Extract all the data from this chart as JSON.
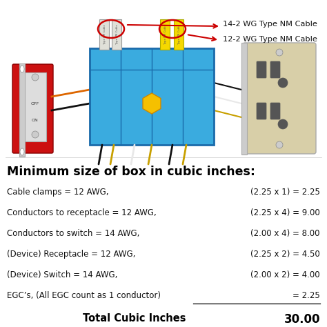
{
  "title": "Minimum size of box in cubic inches:",
  "rows": [
    {
      "label": "Cable clamps = 12 AWG,",
      "calc": "(2.25 x 1) = 2.25",
      "underline": false
    },
    {
      "label": "Conductors to receptacle = 12 AWG,",
      "calc": "(2.25 x 4) = 9.00",
      "underline": false
    },
    {
      "label": "Conductors to switch = 14 AWG,",
      "calc": "(2.00 x 4) = 8.00",
      "underline": false
    },
    {
      "label": "(Device) Receptacle = 12 AWG,",
      "calc": "(2.25 x 2) = 4.50",
      "underline": false
    },
    {
      "label": "(Device) Switch = 14 AWG,",
      "calc": "(2.00 x 2) = 4.00",
      "underline": false
    },
    {
      "label": "EGC’s, (All EGC count as 1 conductor)",
      "calc": "= 2.25",
      "underline": true
    }
  ],
  "total_label": "Total Cubic Inches",
  "total_value": "30.00",
  "cable_label1": "14-2 WG Type NM Cable",
  "cable_label2": "12-2 WG Type NM Cable",
  "bg_color": "#ffffff",
  "title_color": "#000000",
  "text_color": "#111111",
  "total_color": "#000000",
  "box_color": "#3aabdf",
  "box_edge": "#1a6aaa",
  "switch_bg": "#cc1111",
  "switch_face": "#dddddd",
  "receptacle_color": "#d8cfa8",
  "wire_white": "#e8e8e8",
  "wire_black": "#111111",
  "wire_gold": "#c8a000",
  "cable_white_fill": "#e0e0d8",
  "cable_yellow_fill": "#f5d800",
  "arrow_color": "#cc0000",
  "label_font": 8.5,
  "calc_font": 8.5,
  "title_font": 12.5,
  "total_label_font": 10.5,
  "total_value_font": 12.0
}
